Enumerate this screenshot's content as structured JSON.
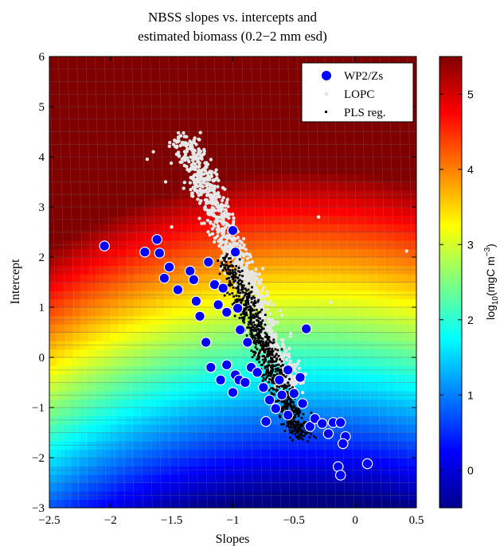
{
  "chart_data": {
    "type": "scatter",
    "title": [
      "NBSS slopes vs. intercepts and",
      "estimated biomass (0.2−2 mm esd)"
    ],
    "xlabel": "Slopes",
    "ylabel": "Intercept",
    "xlim": [
      -2.5,
      0.5
    ],
    "ylim": [
      -3,
      6
    ],
    "xticks": [
      "−2.5",
      "−2",
      "−1.5",
      "−1",
      "−0.5",
      "0",
      "0.5"
    ],
    "yticks": [
      "−3",
      "−2",
      "−1",
      "0",
      "1",
      "2",
      "3",
      "4",
      "5",
      "6"
    ],
    "legend_position": "top-right",
    "background": "filled contour of log10 biomass over slope/intercept plane",
    "colorbar": {
      "label": "log10(mgC m−3)",
      "label_parts": {
        "pre": "log",
        "sub": "10",
        "mid": "(mgC m",
        "sup": "−3",
        "post": ")"
      },
      "ticks": [
        "0",
        "1",
        "2",
        "3",
        "4",
        "5"
      ],
      "range": [
        -0.5,
        5.5
      ],
      "colormap": "jet"
    },
    "series": [
      {
        "name": "WP2/Zs",
        "marker": "circle",
        "color": "#0000ff",
        "points": [
          [
            -2.05,
            2.22
          ],
          [
            -1.72,
            2.1
          ],
          [
            -1.62,
            2.35
          ],
          [
            -1.6,
            2.08
          ],
          [
            -1.56,
            1.58
          ],
          [
            -1.52,
            1.8
          ],
          [
            -1.45,
            1.35
          ],
          [
            -1.35,
            1.72
          ],
          [
            -1.32,
            1.55
          ],
          [
            -1.3,
            1.12
          ],
          [
            -1.27,
            0.82
          ],
          [
            -1.22,
            0.3
          ],
          [
            -1.2,
            1.9
          ],
          [
            -1.15,
            1.45
          ],
          [
            -1.12,
            1.05
          ],
          [
            -1.08,
            1.38
          ],
          [
            -1.05,
            0.9
          ],
          [
            -1.0,
            2.53
          ],
          [
            -0.98,
            2.1
          ],
          [
            -0.96,
            0.98
          ],
          [
            -0.94,
            0.55
          ],
          [
            -1.18,
            -0.2
          ],
          [
            -1.1,
            -0.45
          ],
          [
            -1.05,
            -0.15
          ],
          [
            -1.0,
            -0.7
          ],
          [
            -0.98,
            -0.35
          ],
          [
            -0.95,
            -0.45
          ],
          [
            -0.9,
            -0.5
          ],
          [
            -0.85,
            -0.2
          ],
          [
            -0.8,
            -0.3
          ],
          [
            -0.75,
            -0.6
          ],
          [
            -0.73,
            -1.28
          ],
          [
            -0.7,
            -0.85
          ],
          [
            -0.65,
            -1.02
          ],
          [
            -0.6,
            -0.75
          ],
          [
            -0.55,
            -1.15
          ],
          [
            -0.5,
            -0.72
          ],
          [
            -0.45,
            -0.4
          ],
          [
            -0.43,
            -0.92
          ],
          [
            -0.4,
            0.57
          ],
          [
            -0.37,
            -1.38
          ],
          [
            -0.33,
            -1.22
          ],
          [
            -0.27,
            -1.32
          ],
          [
            -0.22,
            -1.52
          ],
          [
            -0.18,
            -1.3
          ],
          [
            -0.12,
            -1.3
          ],
          [
            -0.08,
            -1.58
          ],
          [
            -0.1,
            -1.72
          ],
          [
            -0.14,
            -2.18
          ],
          [
            -0.12,
            -2.35
          ],
          [
            0.1,
            -2.12
          ],
          [
            -0.55,
            -0.25
          ],
          [
            -0.62,
            -0.45
          ],
          [
            -0.88,
            0.3
          ]
        ]
      },
      {
        "name": "LOPC",
        "marker": "dot",
        "color": "#e6e6e6",
        "distribution": "dense cloud along main diagonal, slope about -1.6 to -0.4, intercept about -1 to 5"
      },
      {
        "name": "PLS reg.",
        "marker": "square-dot",
        "color": "#000000",
        "distribution": "dense cloud along main diagonal, slope about -1.5 to -0.3, intercept about -1.7 to 2"
      }
    ]
  }
}
